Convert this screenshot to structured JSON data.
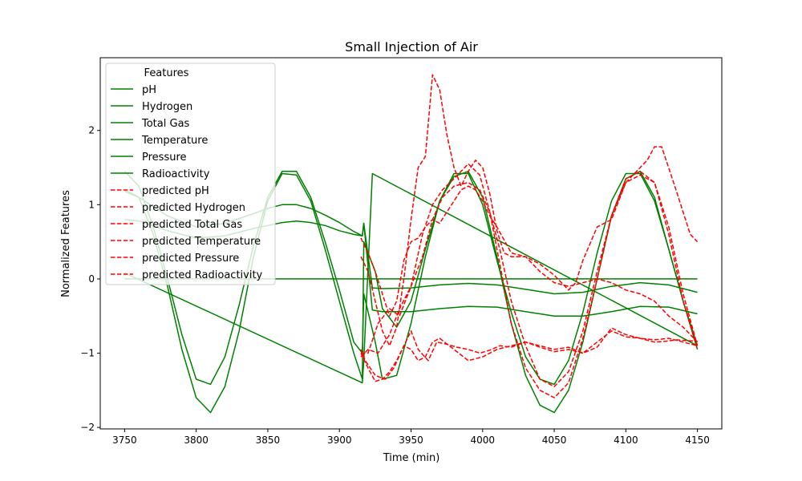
{
  "chart_data": {
    "type": "line",
    "title": "Small Injection of Air",
    "xlabel": "Time (min)",
    "ylabel": "Normalized Features",
    "xlim": [
      3733,
      4167
    ],
    "ylim": [
      -2.02,
      2.98
    ],
    "xticks": [
      3750,
      3800,
      3850,
      3900,
      3950,
      4000,
      4050,
      4100,
      4150
    ],
    "yticks": [
      -2,
      -1,
      0,
      1,
      2
    ],
    "grid": false,
    "legend": {
      "title": "Features",
      "placement": "top-left"
    },
    "colors": {
      "actual": "#008000",
      "predicted": "#ff0000"
    },
    "series": [
      {
        "name": "pH",
        "style": "solid",
        "color": "#008000",
        "x": [
          3750,
          3916,
          3917,
          4150
        ],
        "y": [
          0,
          0,
          0,
          0
        ]
      },
      {
        "name": "Hydrogen",
        "style": "solid",
        "color": "#008000",
        "x": [
          3750,
          3760,
          3770,
          3780,
          3790,
          3800,
          3810,
          3820,
          3830,
          3840,
          3850,
          3860,
          3870,
          3880,
          3890,
          3900,
          3910,
          3916,
          3917,
          3925,
          3930,
          3940,
          3950,
          3960,
          3970,
          3980,
          3990,
          4000,
          4010,
          4020,
          4030,
          4040,
          4050,
          4060,
          4070,
          4080,
          4090,
          4100,
          4110,
          4120,
          4130,
          4140,
          4150
        ],
        "y": [
          1.45,
          1.25,
          0.7,
          0.0,
          -0.75,
          -1.35,
          -1.42,
          -1.05,
          -0.35,
          0.45,
          1.1,
          1.45,
          1.45,
          1.1,
          0.5,
          -0.15,
          -0.85,
          -1.0,
          -0.2,
          -0.85,
          -1.35,
          -1.3,
          -0.6,
          0.3,
          1.05,
          1.42,
          1.42,
          1.0,
          0.25,
          -0.45,
          -1.05,
          -1.35,
          -1.42,
          -1.1,
          -0.45,
          0.35,
          1.05,
          1.42,
          1.42,
          1.05,
          0.4,
          -0.3,
          -0.95
        ]
      },
      {
        "name": "Total Gas",
        "style": "solid",
        "color": "#008000",
        "x": [
          3750,
          3760,
          3770,
          3780,
          3790,
          3800,
          3810,
          3820,
          3830,
          3840,
          3850,
          3860,
          3870,
          3880,
          3890,
          3900,
          3910,
          3916,
          3917,
          3925,
          3930,
          3940,
          3950,
          3960,
          3970,
          3980,
          3990,
          4000,
          4010,
          4020,
          4030,
          4040,
          4050,
          4060,
          4070,
          4080,
          4090,
          4100,
          4110,
          4120,
          4130,
          4140,
          4150
        ],
        "y": [
          1.2,
          1.1,
          0.6,
          -0.1,
          -0.95,
          -1.6,
          -1.8,
          -1.45,
          -0.7,
          0.3,
          1.05,
          1.42,
          1.4,
          1.05,
          0.4,
          -0.3,
          -1.0,
          -1.35,
          0.5,
          0.1,
          -0.4,
          -0.65,
          -0.3,
          0.4,
          1.05,
          1.38,
          1.45,
          1.1,
          0.3,
          -0.6,
          -1.3,
          -1.7,
          -1.8,
          -1.5,
          -0.85,
          0.0,
          0.85,
          1.35,
          1.45,
          1.1,
          0.4,
          -0.3,
          -0.9
        ]
      },
      {
        "name": "Temperature",
        "style": "solid",
        "color": "#008000",
        "x": [
          3750,
          3760,
          3780,
          3800,
          3820,
          3840,
          3850,
          3860,
          3870,
          3880,
          3890,
          3900,
          3910,
          3916,
          3917,
          3923,
          3930,
          3950,
          3970,
          3990,
          4010,
          4030,
          4050,
          4070,
          4090,
          4110,
          4130,
          4150
        ],
        "y": [
          1.18,
          1.1,
          0.85,
          0.7,
          0.75,
          0.88,
          0.95,
          1.0,
          1.0,
          0.95,
          0.86,
          0.76,
          0.64,
          0.58,
          0.75,
          -0.12,
          -0.13,
          -0.12,
          -0.08,
          -0.06,
          -0.08,
          -0.14,
          -0.2,
          -0.18,
          -0.1,
          -0.05,
          -0.08,
          -0.18
        ]
      },
      {
        "name": "Pressure",
        "style": "solid",
        "color": "#008000",
        "x": [
          3750,
          3760,
          3780,
          3800,
          3820,
          3840,
          3850,
          3860,
          3870,
          3880,
          3890,
          3900,
          3910,
          3916,
          3917,
          3923,
          3930,
          3950,
          3970,
          3990,
          4010,
          4030,
          4050,
          4070,
          4090,
          4110,
          4130,
          4150
        ],
        "y": [
          0.8,
          0.78,
          0.65,
          0.55,
          0.58,
          0.68,
          0.72,
          0.76,
          0.78,
          0.76,
          0.72,
          0.65,
          0.6,
          0.58,
          0.75,
          -0.42,
          -0.44,
          -0.44,
          -0.4,
          -0.37,
          -0.38,
          -0.44,
          -0.5,
          -0.5,
          -0.44,
          -0.37,
          -0.38,
          -0.47
        ]
      },
      {
        "name": "Radioactivity",
        "style": "solid",
        "color": "#008000",
        "x": [
          3750,
          3916,
          3917,
          3923,
          4150
        ],
        "y": [
          0.08,
          -1.4,
          -1.1,
          1.42,
          -0.9
        ]
      },
      {
        "name": "predicted pH",
        "style": "dashed",
        "color": "#ff0000",
        "x": [
          3915,
          3918,
          3925,
          3932,
          3938,
          3945,
          3950,
          3955,
          3962,
          3968,
          3975,
          3982,
          3990,
          3998,
          4005,
          4012,
          4020,
          4030,
          4040,
          4050,
          4060,
          4070,
          4080,
          4090,
          4100,
          4110,
          4120,
          4128,
          4135,
          4142,
          4150
        ],
        "y": [
          -0.95,
          -1.1,
          -1.3,
          -1.35,
          -1.2,
          -0.9,
          -0.7,
          -0.95,
          -1.1,
          -0.85,
          -0.88,
          -0.92,
          -0.95,
          -1.0,
          -0.96,
          -0.9,
          -0.92,
          -0.85,
          -0.9,
          -0.95,
          -0.92,
          -1.0,
          -0.85,
          -0.7,
          -0.78,
          -0.8,
          -0.85,
          -0.84,
          -0.82,
          -0.83,
          -0.84
        ]
      },
      {
        "name": "predicted Hydrogen",
        "style": "dashed",
        "color": "#ff0000",
        "x": [
          3915,
          3920,
          3927,
          3935,
          3942,
          3950,
          3958,
          3965,
          3972,
          3980,
          3990,
          3998,
          4005,
          4012,
          4020,
          4030,
          4040,
          4050,
          4060,
          4070,
          4080,
          4090,
          4100,
          4110,
          4120,
          4130,
          4140,
          4150
        ],
        "y": [
          -1.05,
          -0.95,
          -1.0,
          -0.75,
          -0.4,
          -0.1,
          0.3,
          0.8,
          1.1,
          1.25,
          1.3,
          1.2,
          0.9,
          0.4,
          -0.3,
          -0.9,
          -1.35,
          -1.45,
          -1.25,
          -0.7,
          0.1,
          0.85,
          1.3,
          1.4,
          1.3,
          0.6,
          -0.3,
          -0.95
        ]
      },
      {
        "name": "predicted Total Gas",
        "style": "dashed",
        "color": "#ff0000",
        "x": [
          3915,
          3920,
          3927,
          3935,
          3942,
          3950,
          3958,
          3965,
          3972,
          3980,
          3990,
          3998,
          4005,
          4012,
          4020,
          4030,
          4040,
          4050,
          4060,
          4070,
          4080,
          4090,
          4100,
          4110,
          4120,
          4130,
          4140,
          4150
        ],
        "y": [
          -1.0,
          -1.0,
          -0.6,
          -0.4,
          -0.5,
          -0.1,
          0.6,
          1.0,
          1.2,
          1.35,
          1.55,
          1.4,
          0.9,
          0.2,
          -0.6,
          -1.2,
          -1.5,
          -1.6,
          -1.4,
          -0.8,
          0.0,
          0.85,
          1.35,
          1.45,
          1.3,
          0.7,
          -0.2,
          -0.9
        ]
      },
      {
        "name": "predicted Temperature",
        "style": "dashed",
        "color": "#ff0000",
        "x": [
          3915,
          3920,
          3925,
          3930,
          3935,
          3940,
          3945,
          3950,
          3955,
          3960,
          3965,
          3970,
          3975,
          3980,
          3985,
          3990,
          3995,
          4000,
          4005,
          4010,
          4015,
          4020,
          4030,
          4040,
          4050,
          4060,
          4065,
          4070,
          4080,
          4090,
          4100,
          4110,
          4115,
          4120,
          4125,
          4135,
          4145,
          4150
        ],
        "y": [
          0.3,
          0.1,
          -0.3,
          -0.7,
          -0.9,
          -0.65,
          0.0,
          0.8,
          1.5,
          1.65,
          2.75,
          2.55,
          1.95,
          1.5,
          1.25,
          1.45,
          1.6,
          1.5,
          1.15,
          0.65,
          0.35,
          0.3,
          0.3,
          0.2,
          0.05,
          -0.15,
          -0.05,
          0.25,
          0.7,
          0.8,
          1.3,
          1.5,
          1.6,
          1.78,
          1.78,
          1.2,
          0.6,
          0.5
        ]
      },
      {
        "name": "predicted Pressure",
        "style": "dashed",
        "color": "#ff0000",
        "x": [
          3915,
          3920,
          3925,
          3930,
          3935,
          3940,
          3945,
          3950,
          3955,
          3960,
          3965,
          3970,
          3975,
          3980,
          3985,
          3990,
          3995,
          4000,
          4005,
          4010,
          4020,
          4030,
          4040,
          4050,
          4060,
          4070,
          4080,
          4090,
          4100,
          4110,
          4120,
          4130,
          4140,
          4150
        ],
        "y": [
          0.55,
          0.35,
          0.1,
          -0.2,
          -0.5,
          -0.3,
          0.25,
          0.5,
          0.55,
          0.7,
          0.8,
          0.75,
          0.9,
          1.05,
          1.2,
          1.25,
          1.2,
          1.05,
          0.85,
          0.7,
          0.35,
          0.3,
          0.1,
          -0.05,
          -0.1,
          -0.05,
          0.0,
          -0.05,
          -0.15,
          -0.2,
          -0.3,
          -0.5,
          -0.65,
          -0.85
        ]
      },
      {
        "name": "predicted Radioactivity",
        "style": "dashed",
        "color": "#ff0000",
        "x": [
          3915,
          3920,
          3925,
          3930,
          3935,
          3940,
          3945,
          3950,
          3955,
          3960,
          3965,
          3970,
          3980,
          3990,
          4000,
          4010,
          4020,
          4030,
          4040,
          4050,
          4060,
          4070,
          4080,
          4090,
          4100,
          4110,
          4120,
          4130,
          4140,
          4150
        ],
        "y": [
          -1.0,
          -1.2,
          -1.38,
          -1.35,
          -1.25,
          -1.1,
          -0.9,
          -0.95,
          -1.1,
          -1.05,
          -0.85,
          -0.8,
          -0.95,
          -1.1,
          -1.05,
          -0.95,
          -0.9,
          -0.85,
          -0.92,
          -0.98,
          -0.95,
          -1.0,
          -0.92,
          -0.66,
          -0.75,
          -0.8,
          -0.82,
          -0.8,
          -0.85,
          -0.9
        ]
      }
    ]
  }
}
